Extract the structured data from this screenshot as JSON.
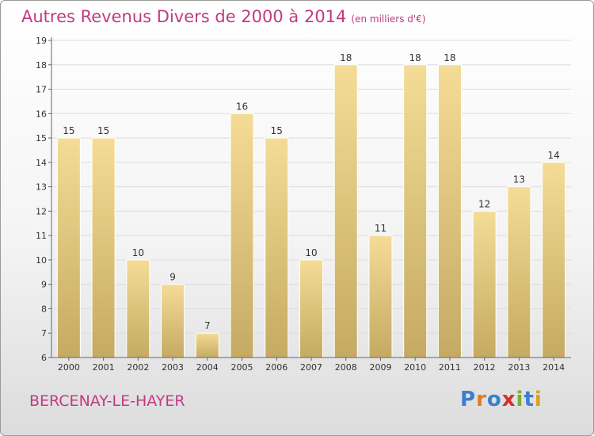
{
  "title": "Autres Revenus Divers de 2000 à 2014",
  "subtitle": "(en milliers d'€)",
  "location": "BERCENAY-LE-HAYER",
  "logo": {
    "text": "Proxiti",
    "colors": [
      "#3a7fd0",
      "#e07a20",
      "#3a7fd0",
      "#d03030",
      "#7ab030",
      "#3a7fd0",
      "#e0a020"
    ]
  },
  "colors": {
    "title": "#c23a82",
    "bar_top": "#f5dc96",
    "bar_bottom": "#c4aa62",
    "grid": "#dcdcdc",
    "axis": "#666666",
    "text": "#333333"
  },
  "chart_data": {
    "type": "bar",
    "title": "Autres Revenus Divers de 2000 à 2014",
    "subtitle": "(en milliers d'€)",
    "categories": [
      "2000",
      "2001",
      "2002",
      "2003",
      "2004",
      "2005",
      "2006",
      "2007",
      "2008",
      "2009",
      "2010",
      "2011",
      "2012",
      "2013",
      "2014"
    ],
    "values": [
      15,
      15,
      10,
      9,
      7,
      16,
      15,
      10,
      18,
      11,
      18,
      18,
      12,
      13,
      14
    ],
    "ylim": [
      6,
      19
    ],
    "yticks": [
      6,
      7,
      8,
      9,
      10,
      11,
      12,
      13,
      14,
      15,
      16,
      17,
      18,
      19
    ],
    "grid": true,
    "xlabel": "",
    "ylabel": ""
  }
}
